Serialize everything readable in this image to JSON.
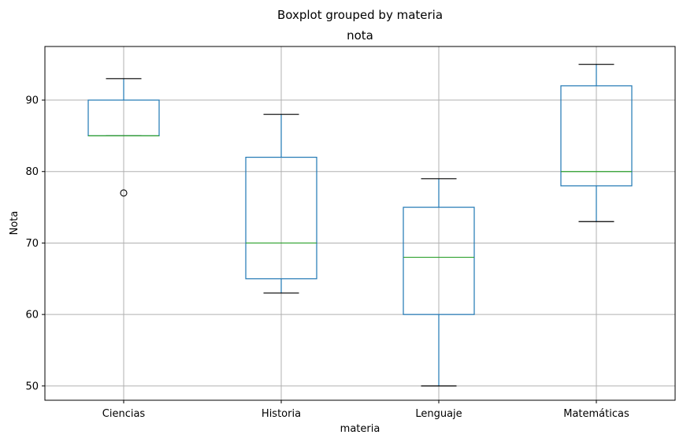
{
  "chart_data": {
    "type": "boxplot",
    "suptitle": "Boxplot grouped by materia",
    "title": "nota",
    "xlabel": "materia",
    "ylabel": "Nota",
    "categories": [
      "Ciencias",
      "Historia",
      "Lenguaje",
      "Matemáticas"
    ],
    "ylim": [
      48,
      97.5
    ],
    "yticks": [
      50,
      60,
      70,
      80,
      90
    ],
    "grid": true,
    "boxes": [
      {
        "category": "Ciencias",
        "whisker_low": 85,
        "q1": 85,
        "median": 85,
        "q3": 90,
        "whisker_high": 93,
        "outliers": [
          77
        ]
      },
      {
        "category": "Historia",
        "whisker_low": 63,
        "q1": 65,
        "median": 70,
        "q3": 82,
        "whisker_high": 88,
        "outliers": []
      },
      {
        "category": "Lenguaje",
        "whisker_low": 50,
        "q1": 60,
        "median": 68,
        "q3": 75,
        "whisker_high": 79,
        "outliers": []
      },
      {
        "category": "Matemáticas",
        "whisker_low": 73,
        "q1": 78,
        "median": 80,
        "q3": 92,
        "whisker_high": 95,
        "outliers": []
      }
    ],
    "colors": {
      "box": "#1f77b4",
      "median": "#2ca02c",
      "whisker_cap": "#000000",
      "grid": "#b0b0b0"
    }
  }
}
